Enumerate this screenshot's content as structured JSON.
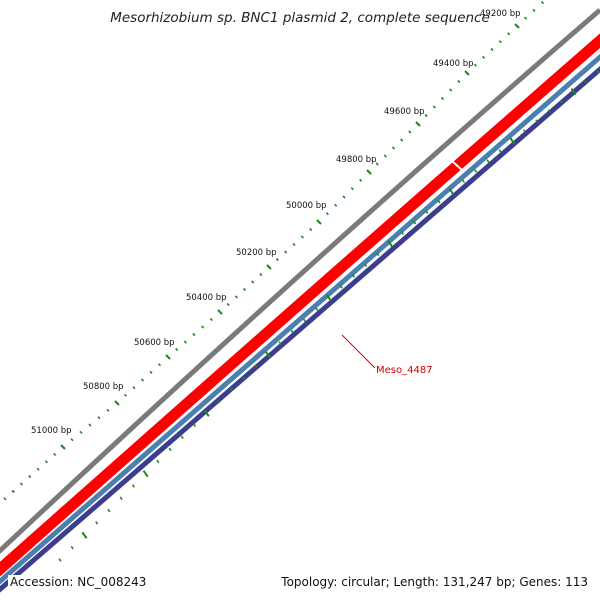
{
  "title": "Mesorhizobium sp. BNC1 plasmid 2, complete sequence",
  "footer": {
    "accession": "Accession: NC_008243",
    "summary": "Topology: circular; Length: 131,247 bp; Genes: 113"
  },
  "ticks": [
    {
      "label": "49200 bp",
      "bp": 49200
    },
    {
      "label": "49400 bp",
      "bp": 49400
    },
    {
      "label": "49600 bp",
      "bp": 49600
    },
    {
      "label": "49800 bp",
      "bp": 49800
    },
    {
      "label": "50000 bp",
      "bp": 50000
    },
    {
      "label": "50200 bp",
      "bp": 50200
    },
    {
      "label": "50400 bp",
      "bp": 50400
    },
    {
      "label": "50600 bp",
      "bp": 50600
    },
    {
      "label": "50800 bp",
      "bp": 50800
    },
    {
      "label": "51000 bp",
      "bp": 51000
    }
  ],
  "gene_label": "Meso_4487",
  "colors": {
    "backbone": "#7a7a7a",
    "gene_track": "#ff0000",
    "gene_track_dark": "#c00000",
    "track_blue": "#4a7fb0",
    "track_navy": "#3c3d8c",
    "tick": "#1b8a1b",
    "gene_label": "#d40000"
  }
}
